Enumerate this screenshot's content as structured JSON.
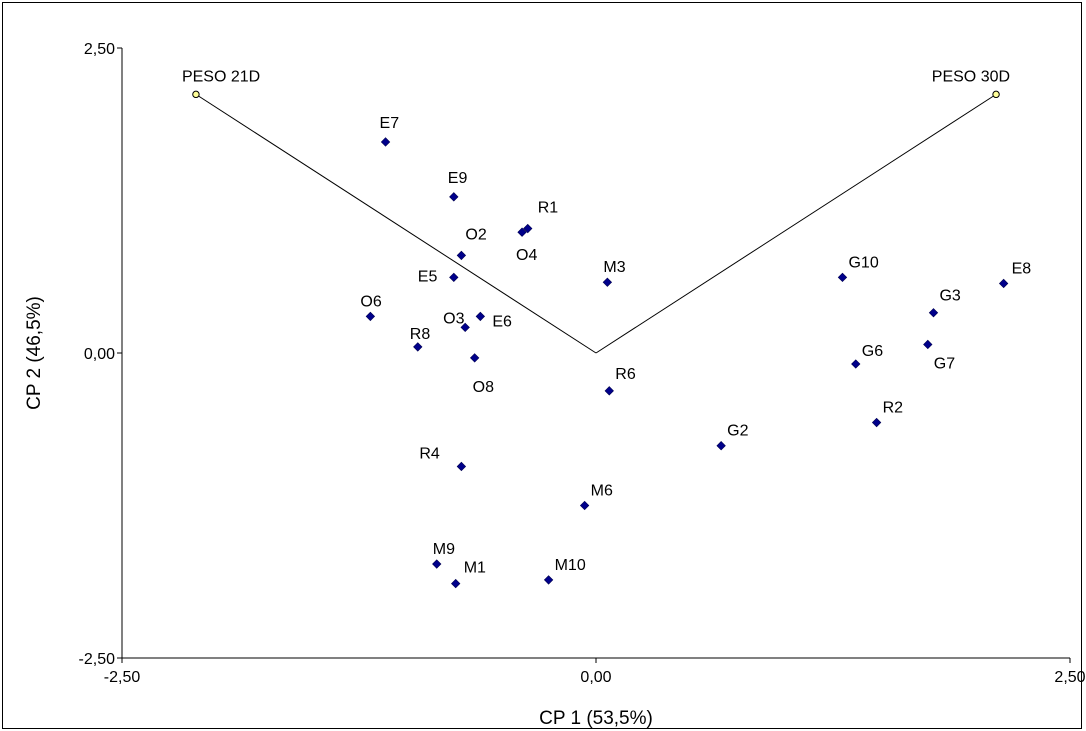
{
  "chart_data": {
    "type": "scatter",
    "title": "",
    "xlabel": "CP 1 (53,5%)",
    "ylabel": "CP 2 (46,5%)",
    "xlim": [
      -2.5,
      2.5
    ],
    "ylim": [
      -2.5,
      2.5
    ],
    "x_ticks": [
      "-2,50",
      "0,00",
      "2,50"
    ],
    "y_ticks": [
      "2,50",
      "0,00",
      "-2,50"
    ],
    "grid": false,
    "legend": "none",
    "colors": {
      "points": "#00008b",
      "vectors": "#ffff99",
      "vector_line": "#000000"
    },
    "vectors": [
      {
        "label": "PESO 21D",
        "x": -2.11,
        "y": 2.12
      },
      {
        "label": "PESO 30D",
        "x": 2.11,
        "y": 2.12
      }
    ],
    "points": [
      {
        "label": "E7",
        "x": -1.11,
        "y": 1.73
      },
      {
        "label": "E9",
        "x": -0.75,
        "y": 1.28
      },
      {
        "label": "R1",
        "x": -0.36,
        "y": 1.02
      },
      {
        "label": "O4",
        "x": -0.39,
        "y": 0.99
      },
      {
        "label": "O2",
        "x": -0.71,
        "y": 0.8
      },
      {
        "label": "M3",
        "x": 0.06,
        "y": 0.58
      },
      {
        "label": "E5",
        "x": -0.75,
        "y": 0.62
      },
      {
        "label": "O6",
        "x": -1.19,
        "y": 0.3
      },
      {
        "label": "O3",
        "x": -0.69,
        "y": 0.21
      },
      {
        "label": "E6",
        "x": -0.61,
        "y": 0.3
      },
      {
        "label": "R8",
        "x": -0.94,
        "y": 0.05
      },
      {
        "label": "O8",
        "x": -0.64,
        "y": -0.04
      },
      {
        "label": "R6",
        "x": 0.07,
        "y": -0.31
      },
      {
        "label": "G10",
        "x": 1.3,
        "y": 0.62
      },
      {
        "label": "E8",
        "x": 2.15,
        "y": 0.57
      },
      {
        "label": "G3",
        "x": 1.78,
        "y": 0.33
      },
      {
        "label": "G7",
        "x": 1.75,
        "y": 0.07
      },
      {
        "label": "G6",
        "x": 1.37,
        "y": -0.09
      },
      {
        "label": "R2",
        "x": 1.48,
        "y": -0.57
      },
      {
        "label": "G2",
        "x": 0.66,
        "y": -0.76
      },
      {
        "label": "R4",
        "x": -0.71,
        "y": -0.93
      },
      {
        "label": "M6",
        "x": -0.06,
        "y": -1.25
      },
      {
        "label": "M9",
        "x": -0.84,
        "y": -1.73
      },
      {
        "label": "M1",
        "x": -0.74,
        "y": -1.89
      },
      {
        "label": "M10",
        "x": -0.25,
        "y": -1.86
      }
    ]
  }
}
